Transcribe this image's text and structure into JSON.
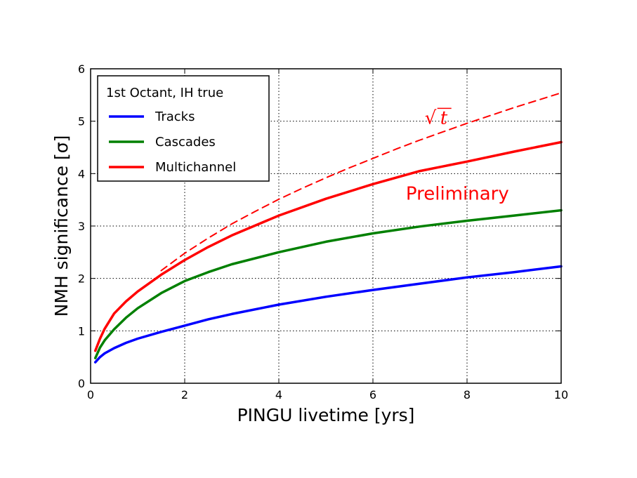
{
  "chart_data": {
    "type": "line",
    "title": "",
    "xlabel": "PINGU livetime [yrs]",
    "ylabel": "NMH significance [σ]",
    "xlim": [
      0,
      10
    ],
    "ylim": [
      0,
      6
    ],
    "xticks": [
      0,
      2,
      4,
      6,
      8,
      10
    ],
    "yticks": [
      0,
      1,
      2,
      3,
      4,
      5,
      6
    ],
    "grid": true,
    "legend_title": "1st Octant, IH true",
    "legend_position": "top-left",
    "series": [
      {
        "name": "Tracks",
        "color": "#0000ff",
        "style": "solid",
        "x": [
          0.1,
          0.2,
          0.3,
          0.5,
          0.75,
          1,
          1.5,
          2,
          2.5,
          3,
          4,
          5,
          6,
          7,
          8,
          9,
          10
        ],
        "y": [
          0.4,
          0.5,
          0.57,
          0.67,
          0.77,
          0.85,
          0.98,
          1.1,
          1.22,
          1.32,
          1.5,
          1.65,
          1.78,
          1.9,
          2.02,
          2.12,
          2.23
        ]
      },
      {
        "name": "Cascades",
        "color": "#008000",
        "style": "solid",
        "x": [
          0.1,
          0.2,
          0.3,
          0.5,
          0.75,
          1,
          1.5,
          2,
          2.5,
          3,
          4,
          5,
          6,
          7,
          8,
          9,
          10
        ],
        "y": [
          0.48,
          0.68,
          0.82,
          1.03,
          1.25,
          1.43,
          1.72,
          1.95,
          2.12,
          2.27,
          2.5,
          2.7,
          2.86,
          2.99,
          3.1,
          3.2,
          3.3
        ]
      },
      {
        "name": "Multichannel",
        "color": "#ff0000",
        "style": "solid",
        "x": [
          0.1,
          0.2,
          0.3,
          0.5,
          0.75,
          1,
          1.5,
          2,
          2.5,
          3,
          4,
          5,
          6,
          7,
          8,
          9,
          10
        ],
        "y": [
          0.62,
          0.85,
          1.04,
          1.33,
          1.56,
          1.75,
          2.07,
          2.35,
          2.6,
          2.82,
          3.2,
          3.52,
          3.8,
          4.05,
          4.23,
          4.42,
          4.6
        ]
      },
      {
        "name": "√t",
        "color": "#ff0000",
        "style": "dashed",
        "show_in_legend": false,
        "x": [
          1.5,
          2,
          2.5,
          3,
          3.5,
          4,
          4.5,
          5,
          5.5,
          6,
          6.5,
          7,
          7.5,
          8,
          8.5,
          9,
          9.5,
          10
        ],
        "y": [
          2.15,
          2.48,
          2.77,
          3.04,
          3.28,
          3.51,
          3.72,
          3.92,
          4.11,
          4.29,
          4.47,
          4.64,
          4.8,
          4.96,
          5.11,
          5.26,
          5.4,
          5.54
        ]
      }
    ],
    "annotations": [
      {
        "text": "Preliminary",
        "color": "#ff0000",
        "x": 6.7,
        "y": 3.5
      },
      {
        "text": "t",
        "radical": "√",
        "color": "#ff0000",
        "x": 7.1,
        "y": 4.95
      }
    ]
  }
}
